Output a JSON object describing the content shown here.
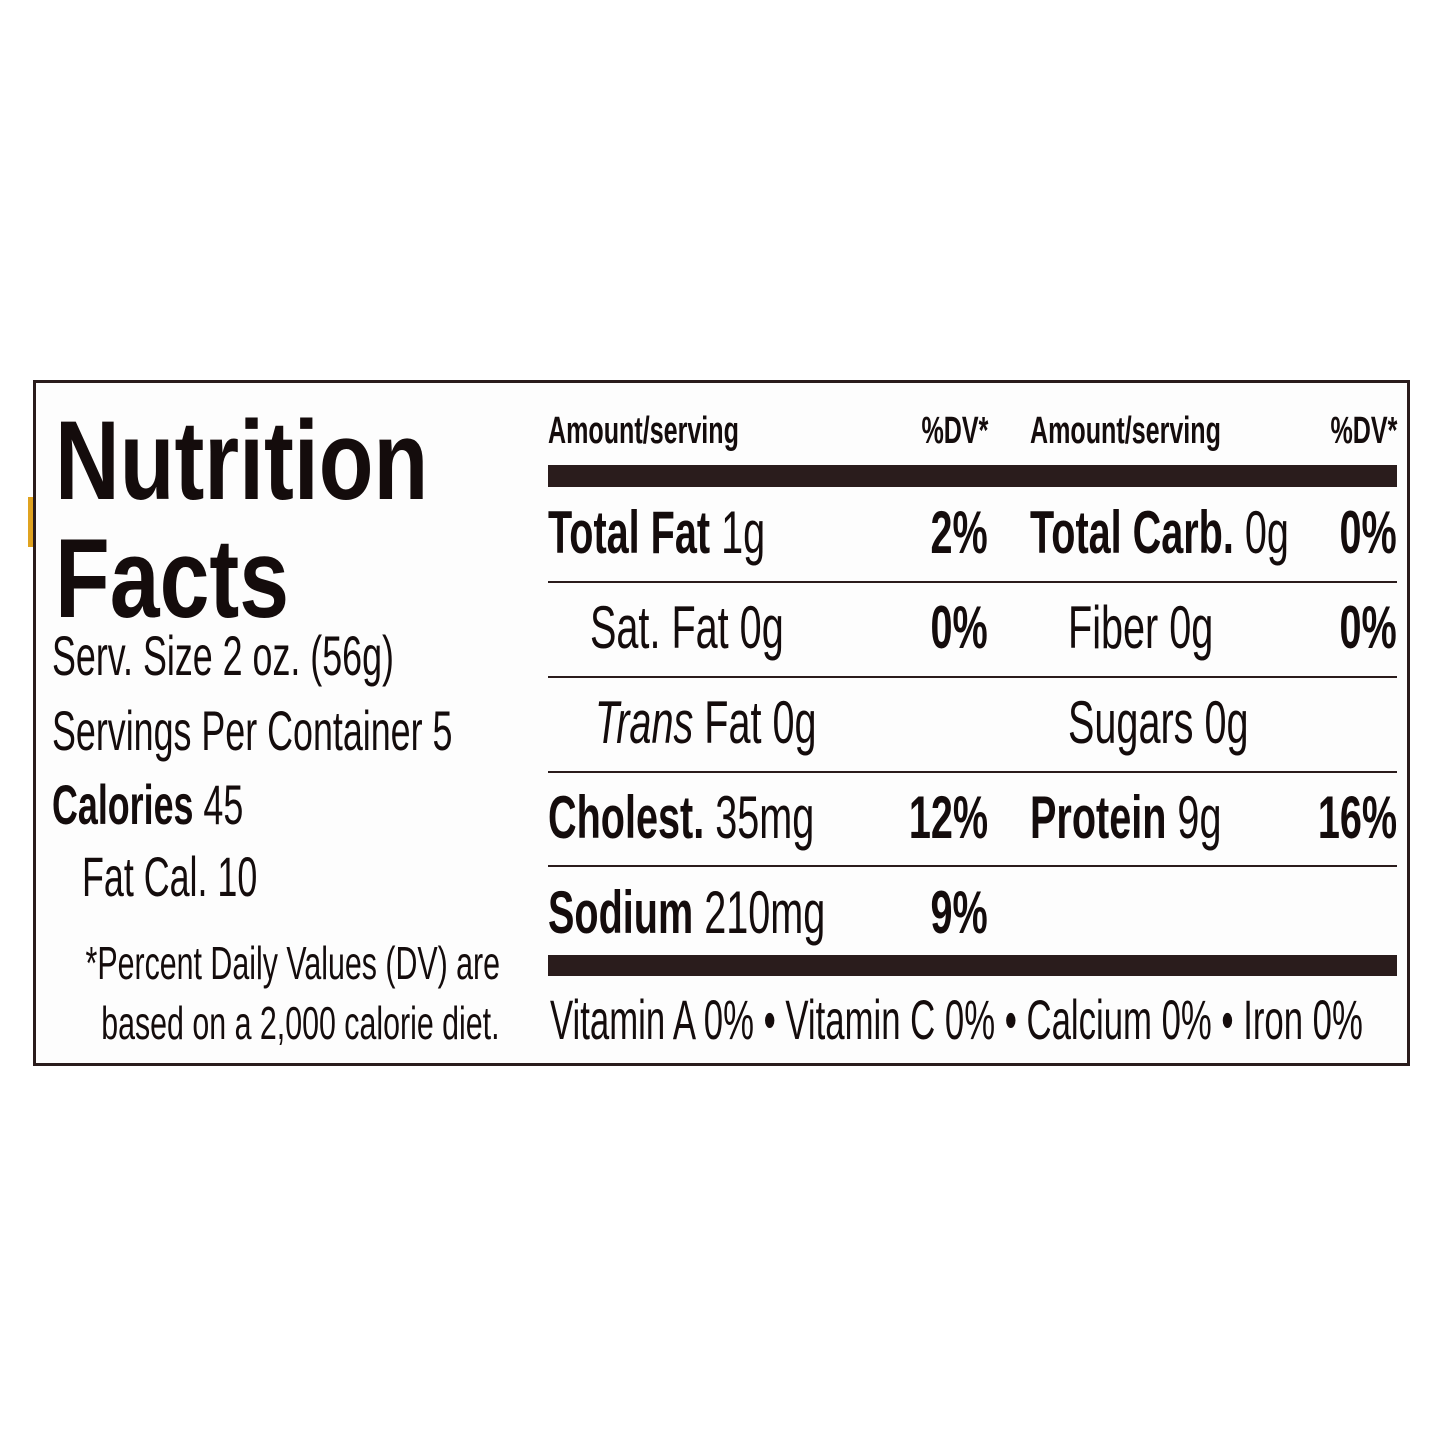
{
  "label": {
    "title_line1": "Nutrition",
    "title_line2": "Facts",
    "serving_size": "Serv. Size 2 oz. (56g)",
    "servings_per_container": "Servings Per Container 5",
    "calories_label": "Calories",
    "calories_value": "45",
    "fat_calories": "Fat Cal. 10",
    "footnote_line1": "*Percent Daily Values (DV) are",
    "footnote_line2": "based on a 2,000 calorie diet.",
    "headers": {
      "amount": "Amount/serving",
      "dv": "%DV*"
    },
    "left_rows": [
      {
        "label": "Total Fat",
        "amount": "1g",
        "dv": "2%"
      },
      {
        "label": "Sat. Fat",
        "amount": "0g",
        "dv": "0%"
      },
      {
        "label": "Trans",
        "amount": "Fat 0g",
        "dv": ""
      },
      {
        "label": "Cholest.",
        "amount": "35mg",
        "dv": "12%"
      },
      {
        "label": "Sodium",
        "amount": "210mg",
        "dv": "9%"
      }
    ],
    "right_rows": [
      {
        "label": "Total Carb.",
        "amount": "0g",
        "dv": "0%"
      },
      {
        "label": "Fiber",
        "amount": "0g",
        "dv": "0%"
      },
      {
        "label": "Sugars",
        "amount": "0g",
        "dv": ""
      },
      {
        "label": "Protein",
        "amount": "9g",
        "dv": "16%"
      }
    ],
    "vitamins": "Vitamin A 0% • Vitamin C 0% • Calcium 0% • Iron 0%"
  },
  "colors": {
    "ink": "#140c0c",
    "border": "#2a1c1c",
    "accent": "#e0a320"
  }
}
